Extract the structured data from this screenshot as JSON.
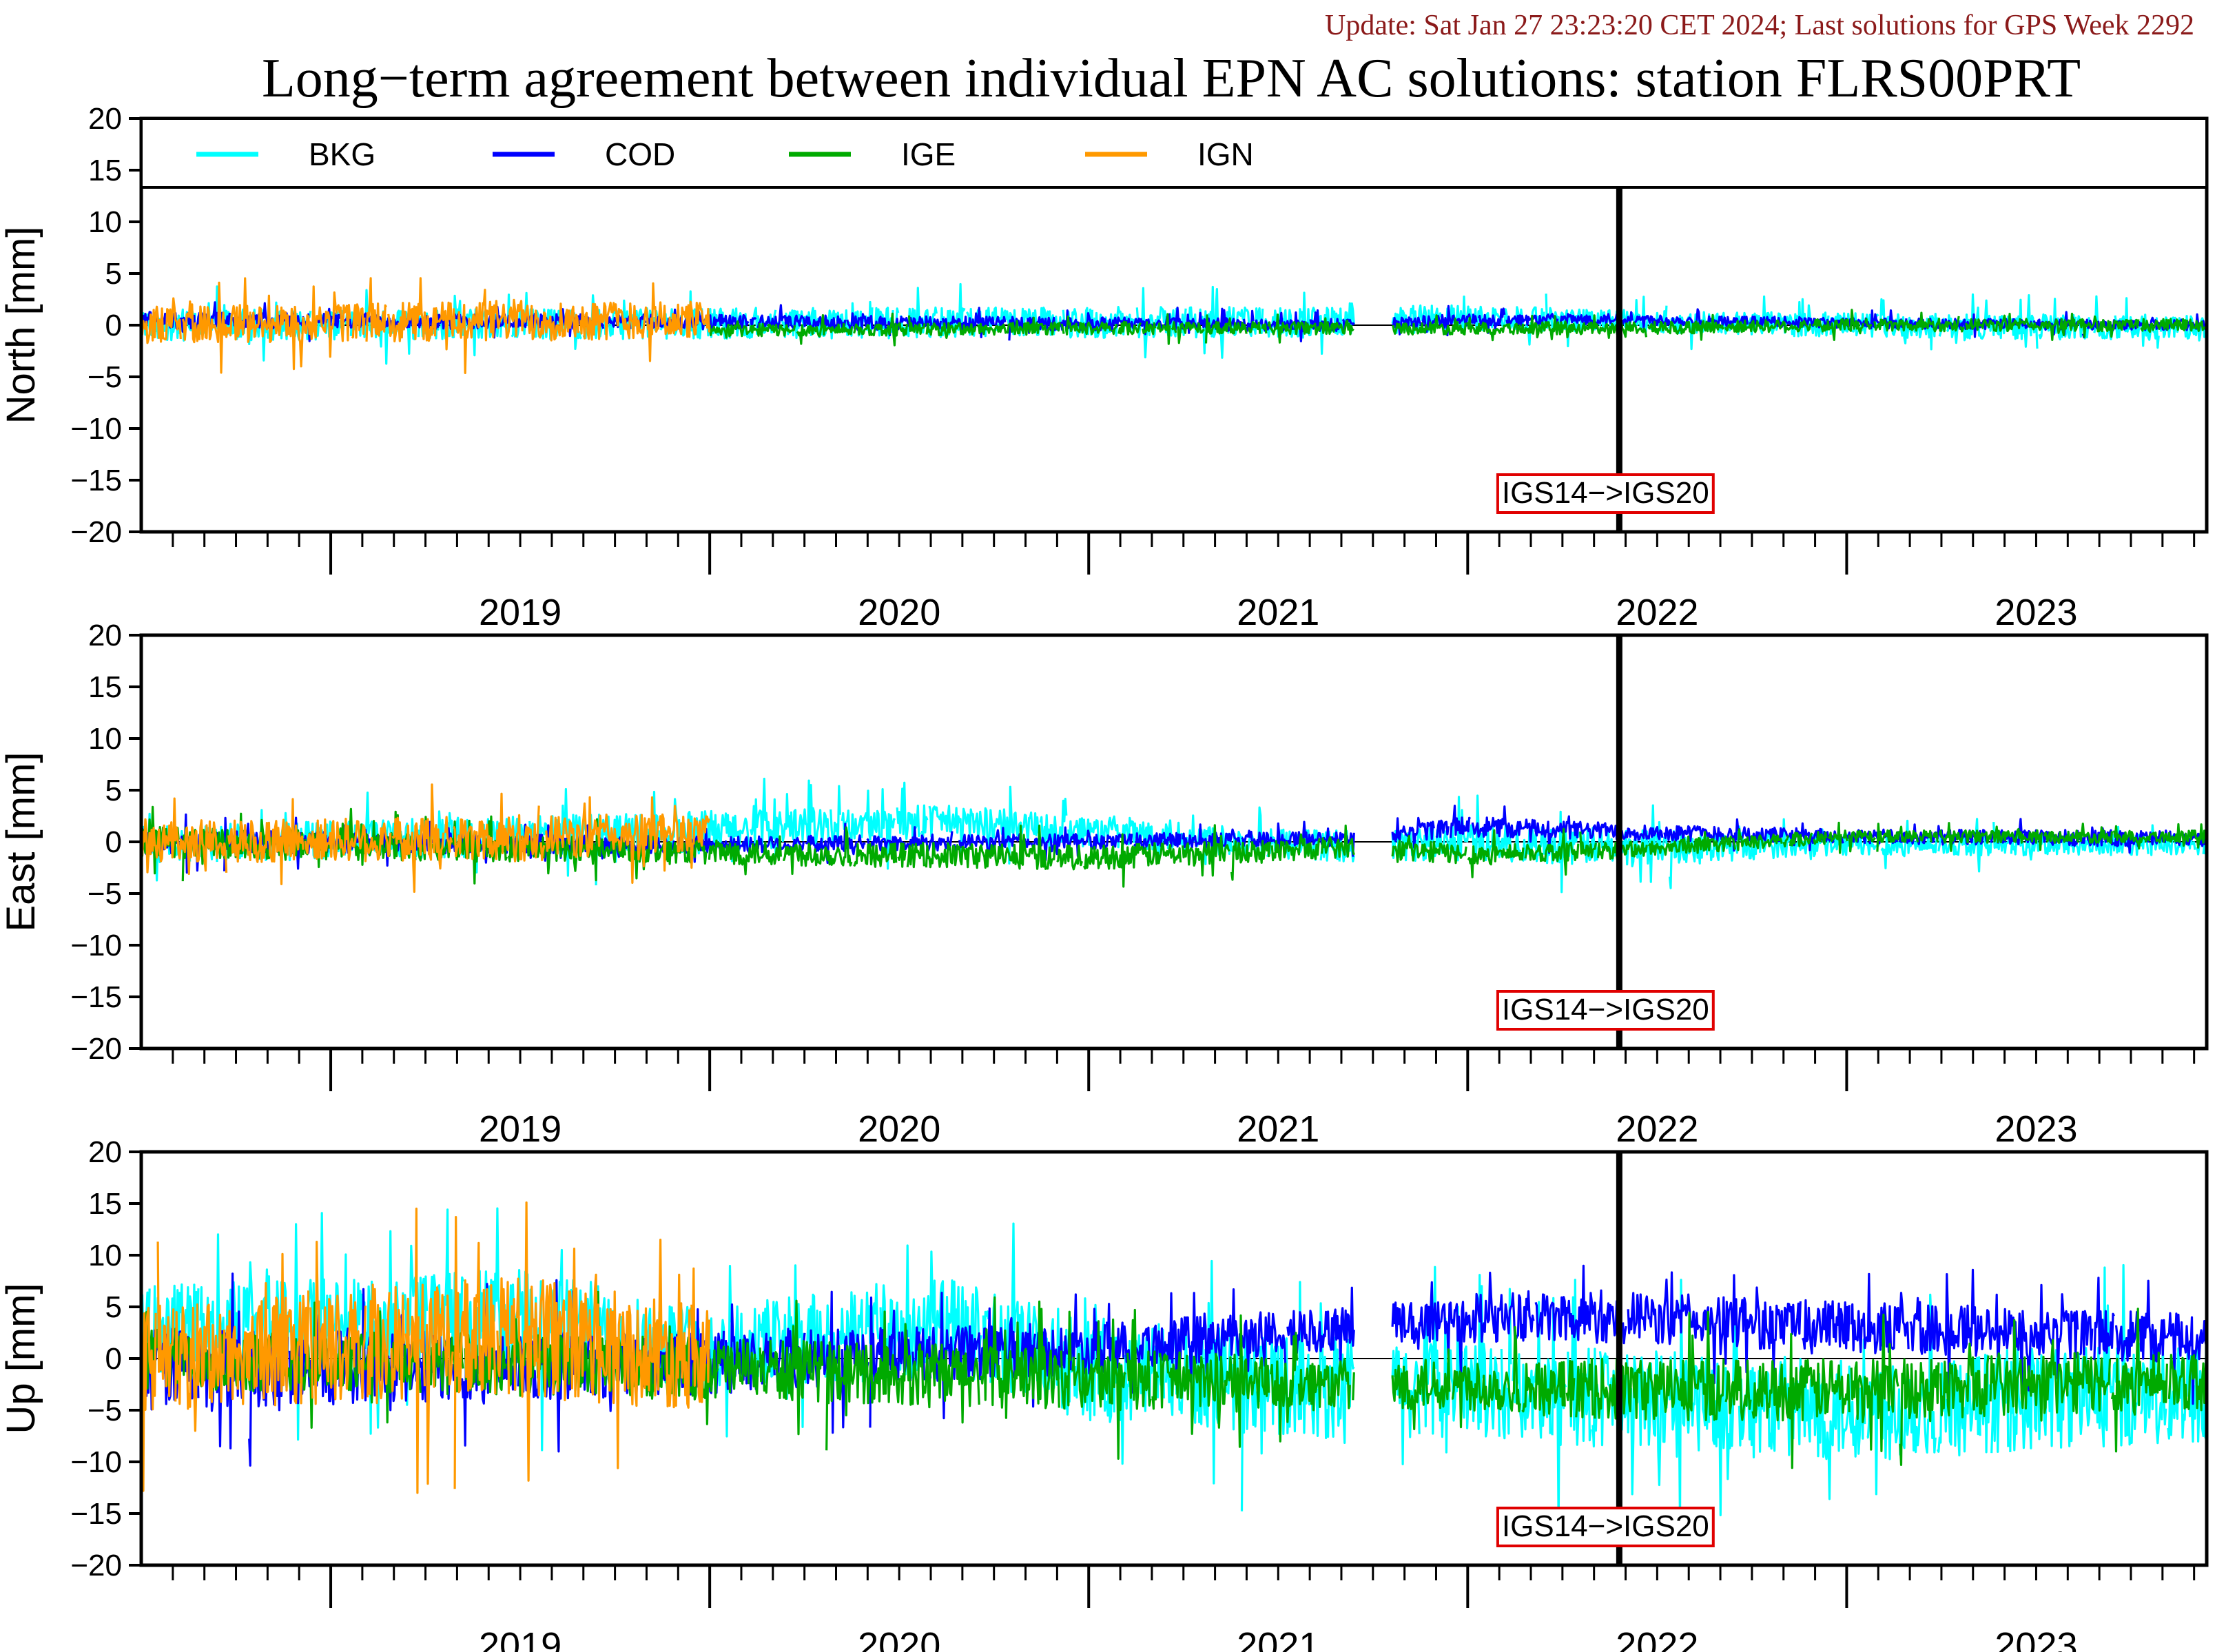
{
  "header": {
    "update_text": "Update: Sat Jan 27 23:23:20 CET 2024; Last solutions for GPS Week 2292",
    "title": "Long−term agreement between individual EPN AC solutions: station FLRS00PRT"
  },
  "chart_data": {
    "type": "line",
    "x_unit": "year",
    "xlim": [
      2018.5,
      2023.95
    ],
    "x_ticks": [
      "2019",
      "2020",
      "2021",
      "2022",
      "2023"
    ],
    "ylim": [
      -20,
      20
    ],
    "y_ticks": [
      "20",
      "15",
      "10",
      "5",
      "0",
      "−5",
      "−10",
      "−15",
      "−20"
    ],
    "legend": {
      "placement": "top",
      "entries": [
        {
          "name": "BKG",
          "color": "#00ffff"
        },
        {
          "name": "COD",
          "color": "#0000ff"
        },
        {
          "name": "IGE",
          "color": "#00aa00"
        },
        {
          "name": "IGN",
          "color": "#ff9900"
        }
      ]
    },
    "frame_change": {
      "label": "IGS14−>IGS20",
      "x": 2022.4
    },
    "gaps": [
      [
        2021.7,
        2021.8
      ]
    ],
    "panels": [
      {
        "ylabel": "North [mm]",
        "series": [
          {
            "name": "BKG",
            "color": "#00ffff",
            "x": [
              2018.5,
              2020.0,
              2021.7,
              2022.0,
              2022.4,
              2023.0,
              2023.95
            ],
            "y_mean": [
              0.0,
              0.2,
              0.3,
              0.7,
              0.4,
              0.0,
              -0.3
            ],
            "y_amp": [
              1.5,
              1.5,
              1.5,
              1.3,
              1.0,
              1.2,
              1.2
            ]
          },
          {
            "name": "COD",
            "color": "#0000ff",
            "x": [
              2018.5,
              2020.0,
              2021.7,
              2022.0,
              2022.4,
              2023.0,
              2023.95
            ],
            "y_mean": [
              0.5,
              0.3,
              0.0,
              0.5,
              0.6,
              0.2,
              0.0
            ],
            "y_amp": [
              0.8,
              0.7,
              0.6,
              0.6,
              0.5,
              0.5,
              0.5
            ]
          },
          {
            "name": "IGE",
            "color": "#00aa00",
            "x": [
              2020.0,
              2021.0,
              2021.7,
              2022.4,
              2023.0,
              2023.95
            ],
            "y_mean": [
              -0.5,
              -0.3,
              -0.3,
              -0.3,
              0.0,
              0.0
            ],
            "y_amp": [
              0.6,
              0.6,
              0.6,
              0.6,
              0.6,
              0.6
            ]
          },
          {
            "name": "IGN",
            "color": "#ff9900",
            "x": [
              2018.5,
              2019.5,
              2020.0
            ],
            "y_mean": [
              0.0,
              0.5,
              0.5
            ],
            "y_amp": [
              1.8,
              2.0,
              1.8
            ]
          }
        ]
      },
      {
        "ylabel": "East [mm]",
        "series": [
          {
            "name": "BKG",
            "color": "#00ffff",
            "x": [
              2018.5,
              2020.0,
              2020.6,
              2021.7,
              2022.0,
              2022.4,
              2023.0,
              2023.95
            ],
            "y_mean": [
              -0.3,
              1.0,
              2.0,
              -0.5,
              0.0,
              -0.5,
              -0.3,
              -0.3
            ],
            "y_amp": [
              1.8,
              2.0,
              1.6,
              1.5,
              1.8,
              1.8,
              1.0,
              1.0
            ]
          },
          {
            "name": "COD",
            "color": "#0000ff",
            "x": [
              2018.5,
              2020.0,
              2021.7,
              2022.0,
              2022.4,
              2023.0,
              2023.95
            ],
            "y_mean": [
              0.0,
              -0.3,
              0.3,
              1.5,
              1.0,
              0.5,
              0.3
            ],
            "y_amp": [
              1.2,
              0.8,
              0.7,
              1.0,
              0.8,
              0.7,
              0.8
            ]
          },
          {
            "name": "IGE",
            "color": "#00aa00",
            "x": [
              2018.5,
              2020.0,
              2021.0,
              2021.7,
              2022.0,
              2022.4,
              2023.0,
              2023.95
            ],
            "y_mean": [
              0.0,
              -1.0,
              -1.5,
              -0.5,
              -1.2,
              -0.8,
              0.5,
              0.5
            ],
            "y_amp": [
              1.5,
              1.2,
              1.2,
              1.0,
              1.0,
              0.8,
              0.6,
              0.6
            ]
          },
          {
            "name": "IGN",
            "color": "#ff9900",
            "x": [
              2018.5,
              2019.5,
              2020.0
            ],
            "y_mean": [
              0.0,
              0.3,
              1.0
            ],
            "y_amp": [
              2.0,
              2.2,
              1.8
            ]
          }
        ]
      },
      {
        "ylabel": "Up [mm]",
        "series": [
          {
            "name": "BKG",
            "color": "#00ffff",
            "x": [
              2018.5,
              2019.5,
              2020.0,
              2020.6,
              2021.0,
              2021.7,
              2022.0,
              2022.4,
              2023.0,
              2023.95
            ],
            "y_mean": [
              3.0,
              4.0,
              1.0,
              3.0,
              -1.0,
              -3.0,
              -3.0,
              -4.0,
              -5.0,
              -3.0
            ],
            "y_amp": [
              4.0,
              5.0,
              4.0,
              5.0,
              5.0,
              5.0,
              4.5,
              5.0,
              5.0,
              5.0
            ]
          },
          {
            "name": "COD",
            "color": "#0000ff",
            "x": [
              2018.5,
              2020.0,
              2021.0,
              2021.7,
              2022.0,
              2022.4,
              2023.0,
              2023.95
            ],
            "y_mean": [
              -1.0,
              -0.5,
              1.0,
              3.0,
              4.0,
              4.0,
              3.0,
              2.0
            ],
            "y_amp": [
              4.0,
              3.0,
              2.5,
              2.0,
              2.5,
              2.5,
              2.5,
              2.5
            ]
          },
          {
            "name": "IGE",
            "color": "#00aa00",
            "x": [
              2018.5,
              2020.0,
              2021.0,
              2021.7,
              2022.0,
              2022.4,
              2023.0,
              2023.95
            ],
            "y_mean": [
              0.0,
              -1.0,
              -2.0,
              -2.5,
              -2.5,
              -3.0,
              -3.0,
              -2.0
            ],
            "y_amp": [
              3.0,
              3.0,
              3.0,
              2.5,
              2.5,
              3.0,
              3.0,
              3.0
            ]
          },
          {
            "name": "IGN",
            "color": "#ff9900",
            "x": [
              2018.5,
              2019.5,
              2020.0
            ],
            "y_mean": [
              0.0,
              2.0,
              0.0
            ],
            "y_amp": [
              5.0,
              6.0,
              5.0
            ]
          }
        ]
      }
    ]
  }
}
